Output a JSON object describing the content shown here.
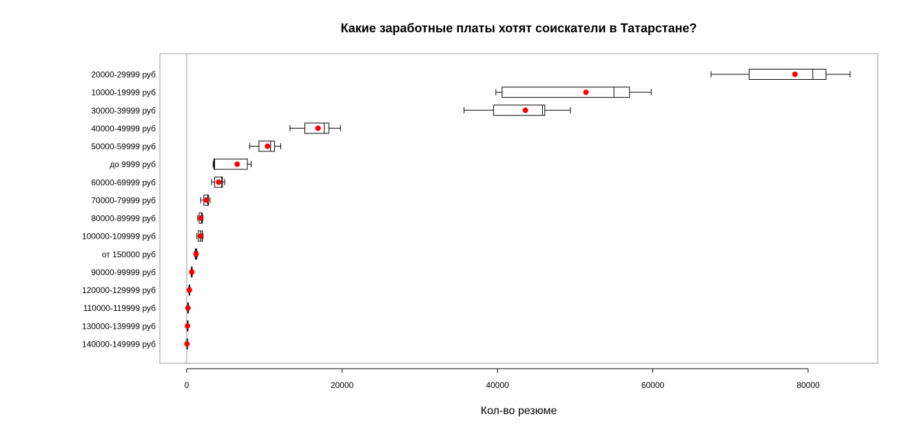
{
  "chart_data": {
    "type": "boxplot",
    "orientation": "horizontal",
    "title": "Какие заработные платы хотят соискатели в Татарстане?",
    "xlabel": "Кол-во резюме",
    "ylabel": "",
    "xlim": [
      -4000,
      89000
    ],
    "x_ticks": [
      0,
      20000,
      40000,
      60000,
      80000
    ],
    "x_tick_labels": [
      "0",
      "20000",
      "40000",
      "60000",
      "80000"
    ],
    "grid": false,
    "reference_line_x": 0,
    "colors": {
      "box": "#000000",
      "mean_point": "#ff0000",
      "frame": "#999999",
      "ref_line": "#999999"
    },
    "categories": [
      "20000-29999 руб",
      "10000-19999 руб",
      "30000-39999 руб",
      "40000-49999 руб",
      "50000-59999 руб",
      "до 9999 руб",
      "60000-69999 руб",
      "70000-79999 руб",
      "80000-89999 руб",
      "100000-109999 руб",
      "от 150000 руб",
      "90000-99999 руб",
      "120000-129999 руб",
      "110000-119999 руб",
      "130000-139999 руб",
      "140000-149999 руб"
    ],
    "boxes": [
      {
        "min": 67500,
        "q1": 72400,
        "median": 80600,
        "q3": 82300,
        "max": 85400,
        "mean": 78300
      },
      {
        "min": 39800,
        "q1": 40600,
        "median": 55000,
        "q3": 57000,
        "max": 59800,
        "mean": 51400
      },
      {
        "min": 35700,
        "q1": 39500,
        "median": 45800,
        "q3": 46100,
        "max": 49400,
        "mean": 43600
      },
      {
        "min": 13300,
        "q1": 15200,
        "median": 17700,
        "q3": 18300,
        "max": 19800,
        "mean": 16900
      },
      {
        "min": 8100,
        "q1": 9300,
        "median": 10800,
        "q3": 11300,
        "max": 12100,
        "mean": 10400
      },
      {
        "min": 3400,
        "q1": 3500,
        "median": 3600,
        "q3": 7800,
        "max": 8300,
        "mean": 6500
      },
      {
        "min": 3200,
        "q1": 3600,
        "median": 4500,
        "q3": 4600,
        "max": 4900,
        "mean": 4100
      },
      {
        "min": 1800,
        "q1": 2200,
        "median": 2700,
        "q3": 2800,
        "max": 3000,
        "mean": 2500
      },
      {
        "min": 1400,
        "q1": 1600,
        "median": 1900,
        "q3": 2000,
        "max": 2100,
        "mean": 1800
      },
      {
        "min": 1300,
        "q1": 1500,
        "median": 1800,
        "q3": 2000,
        "max": 2100,
        "mean": 1800
      },
      {
        "min": 1000,
        "q1": 1100,
        "median": 1200,
        "q3": 1300,
        "max": 1400,
        "mean": 1200
      },
      {
        "min": 550,
        "q1": 600,
        "median": 650,
        "q3": 700,
        "max": 750,
        "mean": 650
      },
      {
        "min": 250,
        "q1": 300,
        "median": 350,
        "q3": 400,
        "max": 450,
        "mean": 350
      },
      {
        "min": 100,
        "q1": 130,
        "median": 160,
        "q3": 190,
        "max": 220,
        "mean": 160
      },
      {
        "min": 60,
        "q1": 80,
        "median": 100,
        "q3": 120,
        "max": 140,
        "mean": 100
      },
      {
        "min": 10,
        "q1": 20,
        "median": 30,
        "q3": 40,
        "max": 50,
        "mean": 30
      }
    ]
  }
}
